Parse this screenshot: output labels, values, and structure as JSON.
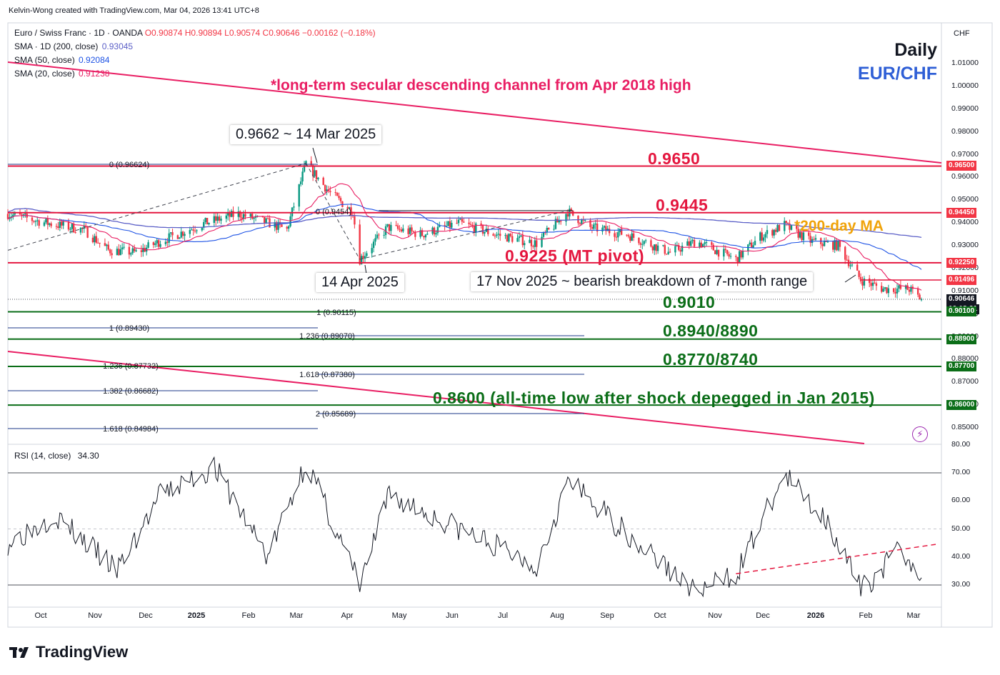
{
  "header": {
    "credit": "Kelvin-Wong created with TradingView.com, Mar 04, 2026 13:41 UTC+8"
  },
  "legend": {
    "symbol": "Euro / Swiss Franc · 1D · OANDA",
    "ohlc": "O0.90874  H0.90894  L0.90574  C0.90646  −0.00162 (−0.18%)",
    "sma200_label": "SMA · 1D (200, close)",
    "sma200_value": "0.93045",
    "sma50_label": "SMA (50, close)",
    "sma50_value": "0.92084",
    "sma20_label": "SMA (20, close)",
    "sma20_value": "0.91238"
  },
  "corner": {
    "daily": "Daily",
    "pair": "EUR/CHF",
    "currency": "CHF"
  },
  "annotations": {
    "channel": "*long-term secular descending channel from Apr 2018 high",
    "high_callout": "0.9662 ~ 14 Mar 2025",
    "low_callout": "14 Apr 2025",
    "breakdown_callout": "17 Nov 2025 ~ bearish breakdown of 7-month range",
    "ma200": "*200-day MA",
    "lvl_9650": "0.9650",
    "lvl_9445": "0.9445",
    "lvl_9225": "0.9225 (MT pivot)",
    "lvl_9010": "0.9010",
    "lvl_8940": "0.8940/8890",
    "lvl_8770": "0.8770/8740",
    "lvl_8600": "0.8600 (all-time low after shock depegged in Jan 2015)"
  },
  "fib_labels": {
    "f0": "0 (0.96624)",
    "f0b": "0 (0.9454)",
    "f1a": "1 (0.90115)",
    "f1b": "1 (0.89430)",
    "f1236a": "1.236 (0.89070)",
    "f1236b": "1.236 (0.87732)",
    "f1618a": "1.618 (0.87380)",
    "f1382": "1.382 (0.86682)",
    "f2": "2 (0.85689)",
    "f1618b": "1.618 (0.84984)"
  },
  "price_axis": {
    "ticks": [
      "1.01000",
      "1.00000",
      "0.99000",
      "0.98000",
      "0.97000",
      "0.96000",
      "0.95000",
      "0.94000",
      "0.93000",
      "0.92000",
      "0.91000",
      "0.90000",
      "0.89000",
      "0.88000",
      "0.87000",
      "0.86000",
      "0.85000"
    ],
    "tags": [
      {
        "text": "0.96500",
        "color": "#f23645"
      },
      {
        "text": "0.94450",
        "color": "#f23645"
      },
      {
        "text": "0.92250",
        "color": "#f23645"
      },
      {
        "text": "0.91496",
        "color": "#f23645"
      },
      {
        "text": "0.90646",
        "color": "#131722"
      },
      {
        "text": "16:18:21",
        "color": "#131722"
      },
      {
        "text": "0.90100",
        "color": "#0b6e18"
      },
      {
        "text": "0.88900",
        "color": "#0b6e18"
      },
      {
        "text": "0.87700",
        "color": "#0b6e18"
      },
      {
        "text": "0.86000",
        "color": "#0b6e18"
      }
    ]
  },
  "rsi": {
    "label": "RSI (14, close)",
    "value": "34.30",
    "ticks": [
      "80.00",
      "70.00",
      "60.00",
      "50.00",
      "40.00",
      "30.00"
    ]
  },
  "time_axis": [
    "Oct",
    "Nov",
    "Dec",
    "2025",
    "Feb",
    "Mar",
    "Apr",
    "May",
    "Jun",
    "Jul",
    "Aug",
    "Sep",
    "Oct",
    "Nov",
    "Dec",
    "2026",
    "Feb",
    "Mar"
  ],
  "footer": {
    "brand": "TradingView"
  },
  "colors": {
    "bull": "#089981",
    "bear": "#f23645",
    "sma200": "#5b5fc7",
    "sma50": "#1e53e5",
    "sma20": "#e91e63",
    "channel": "#e91e63",
    "green": "#0b6e18"
  },
  "chart_data": [
    {
      "type": "candlestick",
      "title": "Euro / Swiss Franc · 1D · OANDA",
      "ylim": [
        0.845,
        1.018
      ],
      "x_range": [
        "2024-09-23",
        "2026-03-04"
      ],
      "key_points": [
        {
          "date": "2024-09-23",
          "close": 0.944
        },
        {
          "date": "2024-10-15",
          "close": 0.94
        },
        {
          "date": "2024-11-06",
          "close": 0.937
        },
        {
          "date": "2024-11-20",
          "close": 0.928
        },
        {
          "date": "2024-12-06",
          "close": 0.927
        },
        {
          "date": "2024-12-20",
          "close": 0.932
        },
        {
          "date": "2025-01-15",
          "close": 0.94
        },
        {
          "date": "2025-02-03",
          "close": 0.944
        },
        {
          "date": "2025-02-20",
          "close": 0.94
        },
        {
          "date": "2025-03-03",
          "close": 0.937
        },
        {
          "date": "2025-03-14",
          "close": 0.9662
        },
        {
          "date": "2025-03-28",
          "close": 0.953
        },
        {
          "date": "2025-04-10",
          "close": 0.945
        },
        {
          "date": "2025-04-14",
          "close": 0.924
        },
        {
          "date": "2025-04-30",
          "close": 0.938
        },
        {
          "date": "2025-05-20",
          "close": 0.935
        },
        {
          "date": "2025-06-10",
          "close": 0.94
        },
        {
          "date": "2025-07-01",
          "close": 0.935
        },
        {
          "date": "2025-07-25",
          "close": 0.931
        },
        {
          "date": "2025-08-12",
          "close": 0.945
        },
        {
          "date": "2025-08-25",
          "close": 0.938
        },
        {
          "date": "2025-09-15",
          "close": 0.935
        },
        {
          "date": "2025-10-10",
          "close": 0.927
        },
        {
          "date": "2025-10-25",
          "close": 0.932
        },
        {
          "date": "2025-11-17",
          "close": 0.924
        },
        {
          "date": "2025-12-01",
          "close": 0.934
        },
        {
          "date": "2025-12-15",
          "close": 0.939
        },
        {
          "date": "2025-12-30",
          "close": 0.932
        },
        {
          "date": "2026-01-15",
          "close": 0.93
        },
        {
          "date": "2026-01-28",
          "close": 0.915
        },
        {
          "date": "2026-02-10",
          "close": 0.911
        },
        {
          "date": "2026-02-25",
          "close": 0.911
        },
        {
          "date": "2026-03-04",
          "close": 0.90646
        }
      ],
      "horizontal_levels": [
        0.965,
        0.9445,
        0.9225,
        0.901,
        0.889,
        0.877,
        0.86
      ],
      "sma": {
        "sma200": 0.93045,
        "sma50": 0.92084,
        "sma20": 0.91238
      }
    },
    {
      "type": "line",
      "title": "RSI (14, close)",
      "ylim": [
        25,
        80
      ],
      "x_range": [
        "2024-09-23",
        "2026-03-04"
      ],
      "key_points": [
        {
          "date": "2024-09-23",
          "value": 45
        },
        {
          "date": "2024-10-20",
          "value": 55
        },
        {
          "date": "2024-11-25",
          "value": 35
        },
        {
          "date": "2024-12-20",
          "value": 62
        },
        {
          "date": "2025-01-20",
          "value": 72
        },
        {
          "date": "2025-02-20",
          "value": 40
        },
        {
          "date": "2025-03-14",
          "value": 74
        },
        {
          "date": "2025-04-14",
          "value": 30
        },
        {
          "date": "2025-05-01",
          "value": 62
        },
        {
          "date": "2025-07-25",
          "value": 37
        },
        {
          "date": "2025-08-12",
          "value": 67
        },
        {
          "date": "2025-10-25",
          "value": 27
        },
        {
          "date": "2025-11-17",
          "value": 34
        },
        {
          "date": "2025-12-15",
          "value": 69
        },
        {
          "date": "2026-01-10",
          "value": 52
        },
        {
          "date": "2026-01-28",
          "value": 28
        },
        {
          "date": "2026-02-20",
          "value": 43
        },
        {
          "date": "2026-03-04",
          "value": 34.3
        }
      ],
      "reference_lines": [
        70,
        50,
        30
      ]
    }
  ]
}
